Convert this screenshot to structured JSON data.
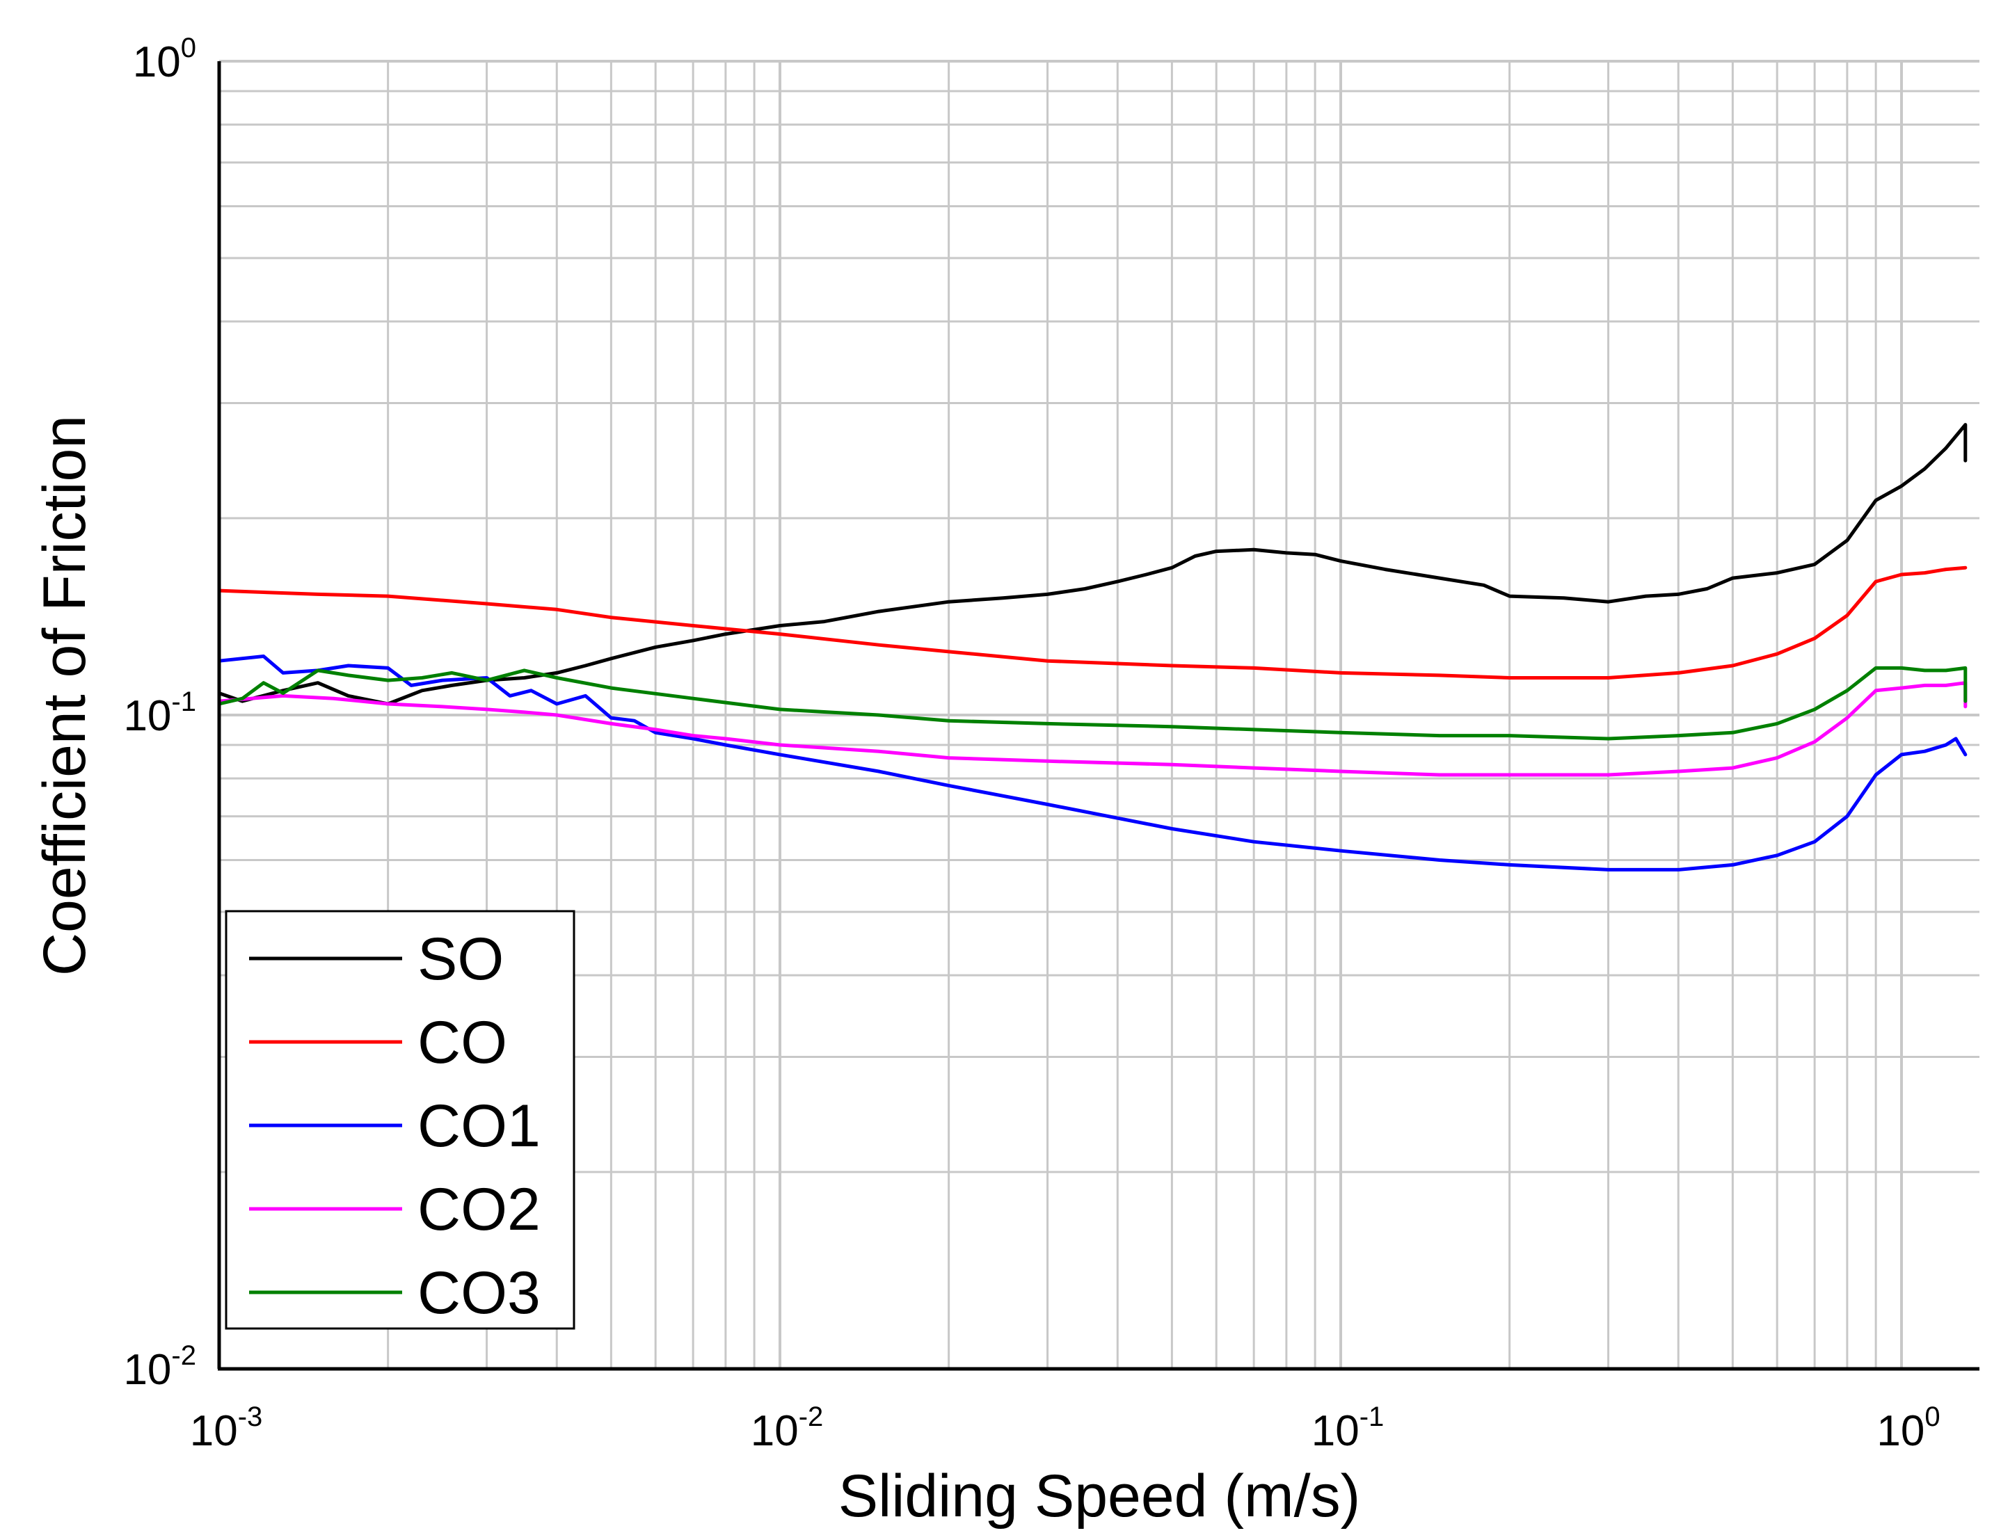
{
  "chart_data": {
    "type": "line",
    "title": "",
    "xlabel": "Sliding Speed (m/s)",
    "ylabel": "Coefficient of Friction",
    "xscale": "log",
    "yscale": "log",
    "xlim": [
      0.001,
      1.3
    ],
    "ylim": [
      0.01,
      1.0
    ],
    "grid": true,
    "legend_position": "bottom-left",
    "x_tick_labels": [
      {
        "value": 0.001,
        "base": "10",
        "exp": "-3"
      },
      {
        "value": 0.01,
        "base": "10",
        "exp": "-2"
      },
      {
        "value": 0.1,
        "base": "10",
        "exp": "-1"
      },
      {
        "value": 1.0,
        "base": "10",
        "exp": "0"
      }
    ],
    "y_tick_labels": [
      {
        "value": 0.01,
        "base": "10",
        "exp": "-2"
      },
      {
        "value": 0.1,
        "base": "10",
        "exp": "-1"
      },
      {
        "value": 1.0,
        "base": "10",
        "exp": "0"
      }
    ],
    "series": [
      {
        "name": "SO",
        "color": "#000000",
        "x": [
          0.001,
          0.0011,
          0.0013,
          0.0015,
          0.0017,
          0.002,
          0.0023,
          0.0026,
          0.003,
          0.0035,
          0.004,
          0.0045,
          0.005,
          0.006,
          0.007,
          0.008,
          0.01,
          0.012,
          0.015,
          0.02,
          0.025,
          0.03,
          0.035,
          0.04,
          0.045,
          0.05,
          0.055,
          0.06,
          0.07,
          0.08,
          0.09,
          0.1,
          0.12,
          0.15,
          0.18,
          0.2,
          0.25,
          0.3,
          0.35,
          0.4,
          0.45,
          0.5,
          0.6,
          0.7,
          0.8,
          0.9,
          1.0,
          1.1,
          1.2,
          1.3,
          1.3
        ],
        "y": [
          0.108,
          0.105,
          0.109,
          0.112,
          0.107,
          0.104,
          0.109,
          0.111,
          0.113,
          0.114,
          0.116,
          0.119,
          0.122,
          0.127,
          0.13,
          0.133,
          0.137,
          0.139,
          0.144,
          0.149,
          0.151,
          0.153,
          0.156,
          0.16,
          0.164,
          0.168,
          0.175,
          0.178,
          0.179,
          0.177,
          0.176,
          0.172,
          0.167,
          0.162,
          0.158,
          0.152,
          0.151,
          0.149,
          0.152,
          0.153,
          0.156,
          0.162,
          0.165,
          0.17,
          0.185,
          0.213,
          0.224,
          0.238,
          0.256,
          0.278,
          0.245
        ]
      },
      {
        "name": "CO",
        "color": "#ff0000",
        "x": [
          0.001,
          0.0015,
          0.002,
          0.003,
          0.004,
          0.005,
          0.007,
          0.01,
          0.015,
          0.02,
          0.03,
          0.05,
          0.07,
          0.1,
          0.15,
          0.2,
          0.3,
          0.4,
          0.5,
          0.6,
          0.7,
          0.8,
          0.9,
          1.0,
          1.1,
          1.2,
          1.3
        ],
        "y": [
          0.155,
          0.153,
          0.152,
          0.148,
          0.145,
          0.141,
          0.137,
          0.133,
          0.128,
          0.125,
          0.121,
          0.119,
          0.118,
          0.116,
          0.115,
          0.114,
          0.114,
          0.116,
          0.119,
          0.124,
          0.131,
          0.142,
          0.16,
          0.164,
          0.165,
          0.167,
          0.168
        ]
      },
      {
        "name": "CO1",
        "color": "#0000ff",
        "x": [
          0.001,
          0.0012,
          0.0013,
          0.0015,
          0.0017,
          0.002,
          0.0022,
          0.0025,
          0.003,
          0.0033,
          0.0036,
          0.004,
          0.0045,
          0.005,
          0.0055,
          0.006,
          0.007,
          0.008,
          0.01,
          0.015,
          0.02,
          0.03,
          0.05,
          0.07,
          0.1,
          0.15,
          0.2,
          0.3,
          0.4,
          0.5,
          0.6,
          0.7,
          0.8,
          0.9,
          1.0,
          1.1,
          1.2,
          1.25,
          1.3
        ],
        "y": [
          0.121,
          0.123,
          0.116,
          0.117,
          0.119,
          0.118,
          0.111,
          0.113,
          0.114,
          0.107,
          0.109,
          0.104,
          0.107,
          0.099,
          0.098,
          0.094,
          0.092,
          0.09,
          0.087,
          0.082,
          0.078,
          0.073,
          0.067,
          0.064,
          0.062,
          0.06,
          0.059,
          0.058,
          0.058,
          0.059,
          0.061,
          0.064,
          0.07,
          0.081,
          0.087,
          0.088,
          0.09,
          0.092,
          0.087
        ]
      },
      {
        "name": "CO2",
        "color": "#ff00ff",
        "x": [
          0.001,
          0.0013,
          0.0016,
          0.002,
          0.0025,
          0.003,
          0.0035,
          0.004,
          0.005,
          0.006,
          0.007,
          0.008,
          0.01,
          0.015,
          0.02,
          0.03,
          0.05,
          0.07,
          0.1,
          0.15,
          0.2,
          0.3,
          0.4,
          0.5,
          0.6,
          0.7,
          0.8,
          0.9,
          1.0,
          1.1,
          1.2,
          1.3,
          1.3
        ],
        "y": [
          0.105,
          0.107,
          0.106,
          0.104,
          0.103,
          0.102,
          0.101,
          0.1,
          0.097,
          0.095,
          0.093,
          0.092,
          0.09,
          0.088,
          0.086,
          0.085,
          0.084,
          0.083,
          0.082,
          0.081,
          0.081,
          0.081,
          0.082,
          0.083,
          0.086,
          0.091,
          0.099,
          0.109,
          0.11,
          0.111,
          0.111,
          0.112,
          0.103
        ]
      },
      {
        "name": "CO3",
        "color": "#008000",
        "x": [
          0.001,
          0.0011,
          0.0012,
          0.0013,
          0.0015,
          0.0017,
          0.002,
          0.0023,
          0.0026,
          0.003,
          0.0035,
          0.004,
          0.005,
          0.007,
          0.01,
          0.015,
          0.02,
          0.03,
          0.05,
          0.07,
          0.1,
          0.15,
          0.2,
          0.3,
          0.4,
          0.5,
          0.6,
          0.7,
          0.8,
          0.9,
          1.0,
          1.1,
          1.2,
          1.3,
          1.3
        ],
        "y": [
          0.104,
          0.106,
          0.112,
          0.108,
          0.117,
          0.115,
          0.113,
          0.114,
          0.116,
          0.113,
          0.117,
          0.114,
          0.11,
          0.106,
          0.102,
          0.1,
          0.098,
          0.097,
          0.096,
          0.095,
          0.094,
          0.093,
          0.093,
          0.092,
          0.093,
          0.094,
          0.097,
          0.102,
          0.109,
          0.118,
          0.118,
          0.117,
          0.117,
          0.118,
          0.105
        ]
      }
    ]
  }
}
